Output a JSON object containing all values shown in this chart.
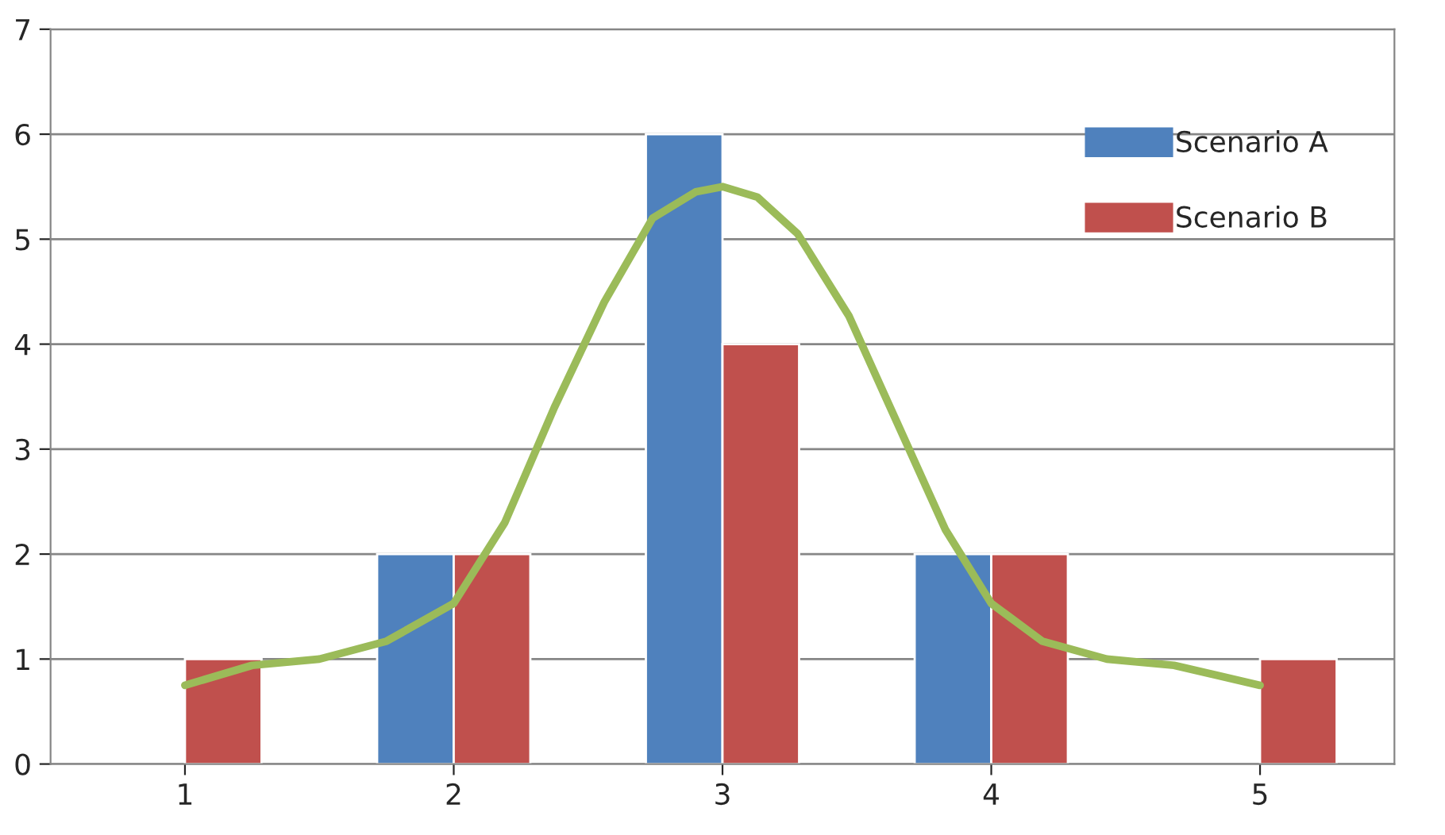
{
  "chart_data": {
    "type": "bar",
    "x": [
      1,
      2,
      3,
      4,
      5
    ],
    "series": [
      {
        "name": "Scenario A",
        "color": "#4f81bd",
        "values": [
          null,
          2,
          6,
          2,
          null
        ]
      },
      {
        "name": "Scenario B",
        "color": "#c0504d",
        "values": [
          1,
          2,
          4,
          2,
          1
        ]
      },
      {
        "type": "line",
        "color": "#9bbb59",
        "x": [
          1,
          1.25,
          1.5,
          1.75,
          2,
          2.19,
          2.375,
          2.56,
          2.74,
          2.9,
          3,
          3.13,
          3.28,
          3.47,
          3.65,
          3.83,
          4,
          4.19,
          4.43,
          4.68,
          5
        ],
        "values": [
          0.75,
          0.94,
          1.0,
          1.17,
          1.53,
          2.3,
          3.4,
          4.4,
          5.2,
          5.45,
          5.5,
          5.4,
          5.05,
          4.27,
          3.25,
          2.23,
          1.53,
          1.17,
          1.0,
          0.94,
          0.75
        ]
      }
    ],
    "xlim": [
      0.5,
      5.5
    ],
    "xticks": [
      1,
      2,
      3,
      4,
      5
    ],
    "ylim": [
      0,
      7
    ],
    "yticks": [
      0,
      1,
      2,
      3,
      4,
      5,
      6,
      7
    ],
    "grid": "y",
    "legend": "top right",
    "line_style": "solid"
  }
}
